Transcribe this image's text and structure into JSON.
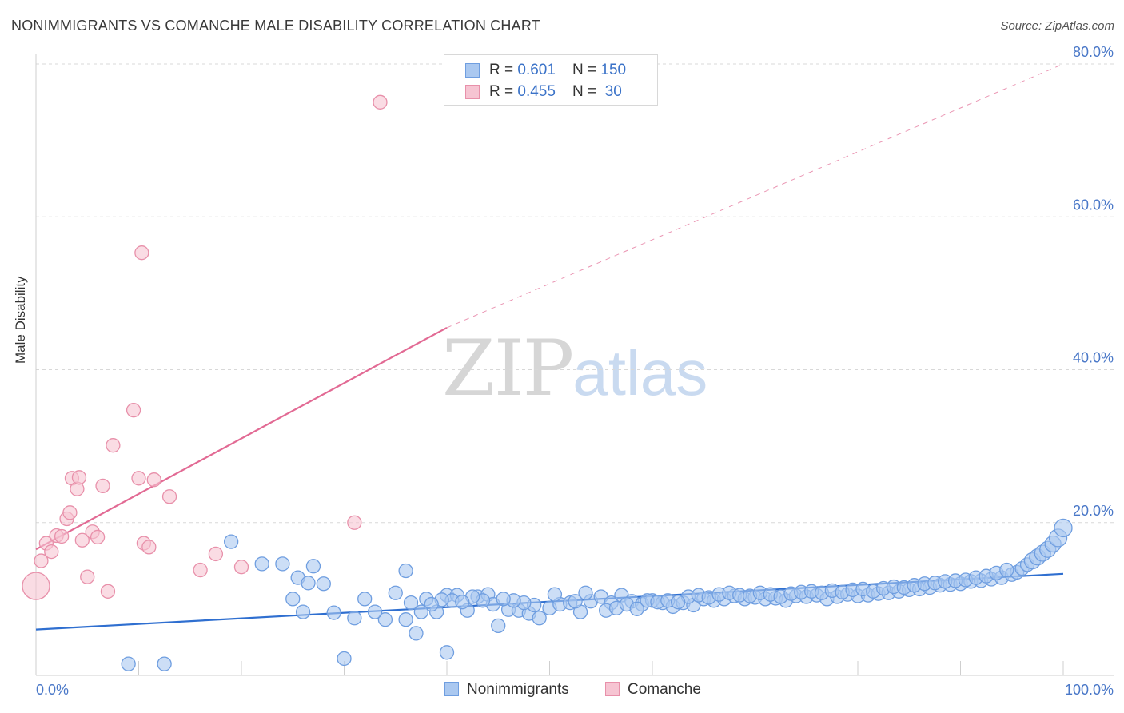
{
  "header": {
    "title": "NONIMMIGRANTS VS COMANCHE MALE DISABILITY CORRELATION CHART",
    "source": "Source: ZipAtlas.com"
  },
  "watermark": {
    "zip": "ZIP",
    "atlas": "atlas"
  },
  "legend_top": {
    "nonimmigrants": {
      "r_label": "R = ",
      "r_value": "0.601",
      "n_label": "N = ",
      "n_value": "150"
    },
    "comanche": {
      "r_label": "R = ",
      "r_value": "0.455",
      "n_label": "N = ",
      "n_value": " 30"
    }
  },
  "legend_bottom": {
    "nonimmigrants": "Nonimmigrants",
    "comanche": "Comanche"
  },
  "colors": {
    "blue_fill": "#aac8f0",
    "blue_stroke": "#6f9ee0",
    "blue_line": "#2f6fd0",
    "pink_fill": "#f6c4d2",
    "pink_stroke": "#e890aa",
    "pink_line": "#e26a94",
    "grid": "#d8d8d8",
    "tick_text": "#4a78c8"
  },
  "chart_data": {
    "type": "scatter",
    "title": "NONIMMIGRANTS VS COMANCHE MALE DISABILITY CORRELATION CHART",
    "xlabel": "",
    "ylabel": "Male Disability",
    "xlim": [
      0,
      100
    ],
    "ylim": [
      0,
      80
    ],
    "x_tick_labels": [
      "0.0%",
      "100.0%"
    ],
    "y_tick_labels": [
      "20.0%",
      "40.0%",
      "60.0%",
      "80.0%"
    ],
    "y_ticks": [
      20,
      40,
      60,
      80
    ],
    "grid": true,
    "series": [
      {
        "name": "Nonimmigrants",
        "R": 0.601,
        "N": 150,
        "trend": {
          "x0": 0,
          "y0": 6.0,
          "x1": 100,
          "y1": 13.3
        },
        "points": [
          [
            9,
            1.5
          ],
          [
            12.5,
            1.5
          ],
          [
            30,
            2.2
          ],
          [
            40,
            3.0
          ],
          [
            45,
            6.5
          ],
          [
            37,
            5.5
          ],
          [
            36,
            7.3
          ],
          [
            31,
            7.5
          ],
          [
            34,
            7.3
          ],
          [
            29,
            8.2
          ],
          [
            26,
            8.3
          ],
          [
            33,
            8.3
          ],
          [
            25,
            10.0
          ],
          [
            19,
            17.5
          ],
          [
            22,
            14.6
          ],
          [
            24,
            14.6
          ],
          [
            27,
            14.3
          ],
          [
            25.5,
            12.8
          ],
          [
            26.5,
            12.1
          ],
          [
            28,
            12.0
          ],
          [
            36,
            13.7
          ],
          [
            40,
            10.5
          ],
          [
            41,
            10.5
          ],
          [
            43,
            10.3
          ],
          [
            44,
            10.6
          ],
          [
            32,
            10.0
          ],
          [
            35,
            10.8
          ],
          [
            36.5,
            9.5
          ],
          [
            38,
            10.0
          ],
          [
            39,
            8.3
          ],
          [
            40.5,
            9.8
          ],
          [
            42,
            8.5
          ],
          [
            44.5,
            9.3
          ],
          [
            46,
            8.6
          ],
          [
            47,
            8.5
          ],
          [
            48,
            8.1
          ],
          [
            48.5,
            9.2
          ],
          [
            49,
            7.5
          ],
          [
            50,
            8.8
          ],
          [
            51,
            9.3
          ],
          [
            52,
            9.5
          ],
          [
            53,
            8.3
          ],
          [
            54,
            9.7
          ],
          [
            55,
            10.3
          ],
          [
            56,
            9.5
          ],
          [
            57,
            10.5
          ],
          [
            58,
            9.7
          ],
          [
            59,
            9.3
          ],
          [
            60,
            9.8
          ],
          [
            61,
            9.5
          ],
          [
            62,
            9.0
          ],
          [
            63,
            9.5
          ],
          [
            64,
            9.2
          ],
          [
            65,
            10.0
          ],
          [
            66,
            9.8
          ],
          [
            67,
            10.0
          ],
          [
            68,
            10.4
          ],
          [
            69,
            10.0
          ],
          [
            70,
            10.2
          ],
          [
            71,
            10.0
          ],
          [
            72,
            10.1
          ],
          [
            73,
            9.8
          ],
          [
            74,
            10.4
          ],
          [
            75,
            10.3
          ],
          [
            76,
            10.5
          ],
          [
            77,
            10.0
          ],
          [
            78,
            10.3
          ],
          [
            79,
            10.6
          ],
          [
            80,
            10.4
          ],
          [
            81,
            10.5
          ],
          [
            82,
            10.7
          ],
          [
            83,
            10.8
          ],
          [
            84,
            11.0
          ],
          [
            85,
            11.2
          ],
          [
            86,
            11.3
          ],
          [
            87,
            11.5
          ],
          [
            88,
            11.8
          ],
          [
            89,
            11.9
          ],
          [
            90,
            12.0
          ],
          [
            91,
            12.3
          ],
          [
            92,
            12.4
          ],
          [
            93,
            12.6
          ],
          [
            94,
            12.8
          ],
          [
            95,
            13.2
          ],
          [
            95.5,
            13.5
          ],
          [
            96,
            14.0
          ],
          [
            96.5,
            14.5
          ],
          [
            97,
            15.0
          ],
          [
            97.5,
            15.5
          ],
          [
            98,
            16.0
          ],
          [
            98.5,
            16.5
          ],
          [
            99,
            17.2
          ],
          [
            99.5,
            18.0
          ],
          [
            100,
            19.3
          ],
          [
            63.5,
            10.3
          ],
          [
            64.5,
            10.5
          ],
          [
            65.5,
            10.2
          ],
          [
            66.5,
            10.6
          ],
          [
            67.5,
            10.8
          ],
          [
            68.5,
            10.5
          ],
          [
            69.5,
            10.4
          ],
          [
            70.5,
            10.8
          ],
          [
            71.5,
            10.6
          ],
          [
            72.5,
            10.3
          ],
          [
            73.5,
            10.7
          ],
          [
            74.5,
            10.9
          ],
          [
            75.5,
            11.0
          ],
          [
            76.5,
            10.8
          ],
          [
            77.5,
            11.1
          ],
          [
            78.5,
            10.9
          ],
          [
            79.5,
            11.2
          ],
          [
            80.5,
            11.3
          ],
          [
            81.5,
            11.0
          ],
          [
            82.5,
            11.4
          ],
          [
            83.5,
            11.6
          ],
          [
            84.5,
            11.5
          ],
          [
            85.5,
            11.8
          ],
          [
            86.5,
            12.0
          ],
          [
            87.5,
            12.1
          ],
          [
            88.5,
            12.3
          ],
          [
            89.5,
            12.4
          ],
          [
            90.5,
            12.5
          ],
          [
            91.5,
            12.8
          ],
          [
            92.5,
            13.0
          ],
          [
            93.5,
            13.4
          ],
          [
            94.5,
            13.8
          ],
          [
            55.5,
            8.5
          ],
          [
            56.5,
            8.8
          ],
          [
            57.5,
            9.3
          ],
          [
            58.5,
            8.7
          ],
          [
            59.5,
            9.8
          ],
          [
            60.5,
            9.6
          ],
          [
            61.5,
            9.8
          ],
          [
            62.5,
            9.6
          ],
          [
            53.5,
            10.8
          ],
          [
            52.5,
            9.7
          ],
          [
            50.5,
            10.6
          ],
          [
            47.5,
            9.5
          ],
          [
            46.5,
            9.8
          ],
          [
            45.5,
            10.0
          ],
          [
            43.5,
            9.8
          ],
          [
            42.5,
            10.3
          ],
          [
            41.5,
            9.6
          ],
          [
            39.5,
            9.9
          ],
          [
            38.5,
            9.3
          ],
          [
            37.5,
            8.3
          ]
        ]
      },
      {
        "name": "Comanche",
        "R": 0.455,
        "N": 30,
        "trend": {
          "x0": 0,
          "y0": 16.5,
          "x1": 40,
          "y1": 45.5,
          "dashed_x1": 100,
          "dashed_y1": 80
        },
        "points": [
          [
            0,
            11.7
          ],
          [
            0.5,
            15.0
          ],
          [
            1,
            17.3
          ],
          [
            1.5,
            16.2
          ],
          [
            2,
            18.3
          ],
          [
            2.5,
            18.2
          ],
          [
            3,
            20.5
          ],
          [
            3.3,
            21.3
          ],
          [
            3.5,
            25.8
          ],
          [
            4,
            24.4
          ],
          [
            4.2,
            25.9
          ],
          [
            4.5,
            17.7
          ],
          [
            5,
            12.9
          ],
          [
            5.5,
            18.8
          ],
          [
            6,
            18.1
          ],
          [
            6.5,
            24.8
          ],
          [
            7,
            11.0
          ],
          [
            7.5,
            30.1
          ],
          [
            9.5,
            34.7
          ],
          [
            10,
            25.8
          ],
          [
            10.3,
            55.3
          ],
          [
            10.5,
            17.3
          ],
          [
            11,
            16.8
          ],
          [
            11.5,
            25.6
          ],
          [
            13,
            23.4
          ],
          [
            16,
            13.8
          ],
          [
            17.5,
            15.9
          ],
          [
            20,
            14.2
          ],
          [
            31,
            20.0
          ],
          [
            33.5,
            75.0
          ]
        ]
      }
    ]
  }
}
